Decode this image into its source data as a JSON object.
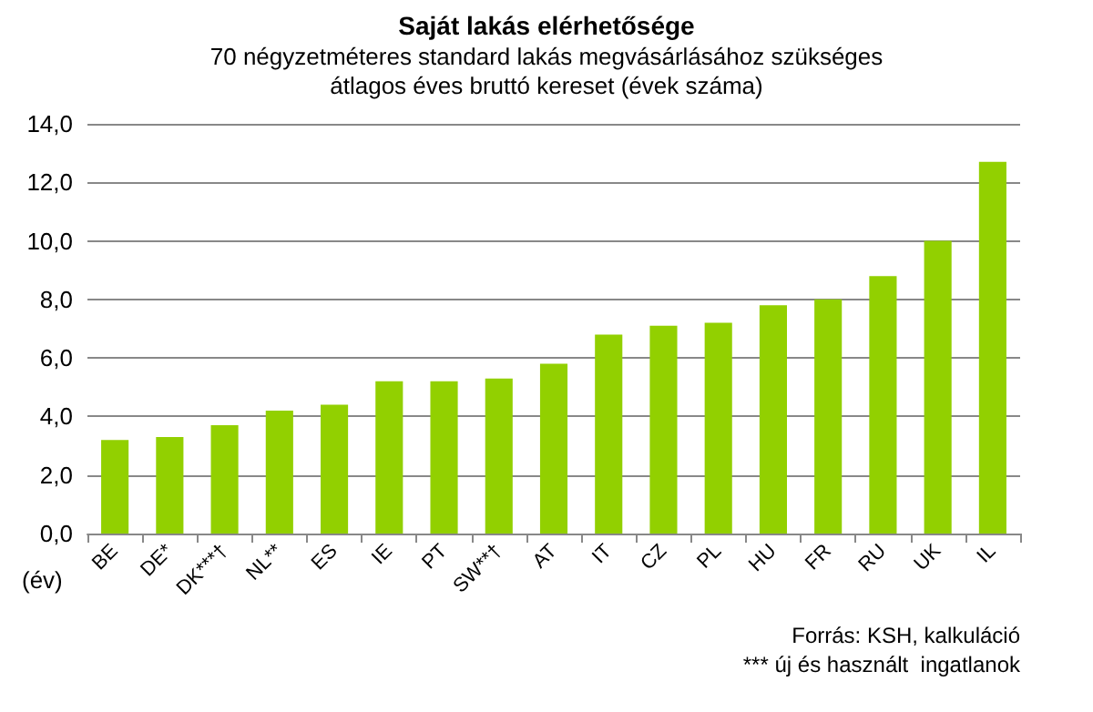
{
  "chart_data": {
    "type": "bar",
    "title": "Saját lakás elérhetősége",
    "subtitle": "70 négyzetméteres standard lakás megvásárlásához szükséges\nátlagos éves bruttó kereset (évek száma)",
    "ylabel": "(év)",
    "categories": [
      "BE",
      "DE*",
      "DK***†",
      "NL**",
      "ES",
      "IE",
      "PT",
      "SW**†",
      "AT",
      "IT",
      "CZ",
      "PL",
      "HU",
      "FR",
      "RU",
      "UK",
      "IL"
    ],
    "values": [
      3.2,
      3.3,
      3.7,
      4.2,
      4.4,
      5.2,
      5.2,
      5.3,
      5.8,
      6.8,
      7.1,
      7.2,
      7.8,
      8.0,
      8.8,
      10.0,
      12.7
    ],
    "color": "#92d000",
    "ylim": [
      0,
      14
    ],
    "yticks": [
      {
        "value": 0,
        "label": "0,0"
      },
      {
        "value": 2,
        "label": "2,0"
      },
      {
        "value": 4,
        "label": "4,0"
      },
      {
        "value": 6,
        "label": "6,0"
      },
      {
        "value": 8,
        "label": "8,0"
      },
      {
        "value": 10,
        "label": "10,0"
      },
      {
        "value": 12,
        "label": "12,0"
      },
      {
        "value": 14,
        "label": "14,0"
      }
    ],
    "grid": "y",
    "annotations": [
      "Forrás: KSH, kalkuláció",
      "*** új és használt  ingatlanok"
    ]
  }
}
